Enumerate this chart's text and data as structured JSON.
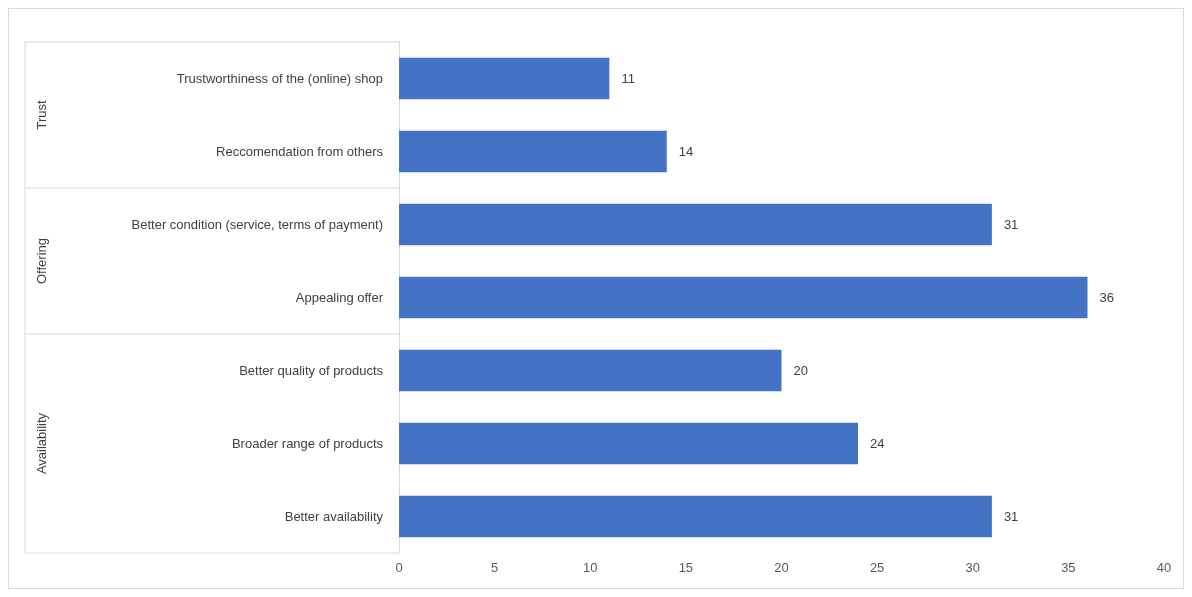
{
  "chart_data": {
    "type": "bar",
    "orientation": "horizontal",
    "categories": [
      "Trustworthiness of the (online) shop",
      "Reccomendation from others",
      "Better condition (service, terms of payment)",
      "Appealing offer",
      "Better quality of products",
      "Broader range of products",
      "Better availability"
    ],
    "values": [
      11,
      14,
      31,
      36,
      20,
      24,
      31
    ],
    "color": "#4472c4",
    "xlim": [
      0,
      40
    ],
    "xticks": [
      0,
      5,
      10,
      15,
      20,
      25,
      30,
      35,
      40
    ],
    "grid": false,
    "data_labels": true,
    "annotations": [
      "Trust",
      "Offering",
      "Availability"
    ]
  }
}
